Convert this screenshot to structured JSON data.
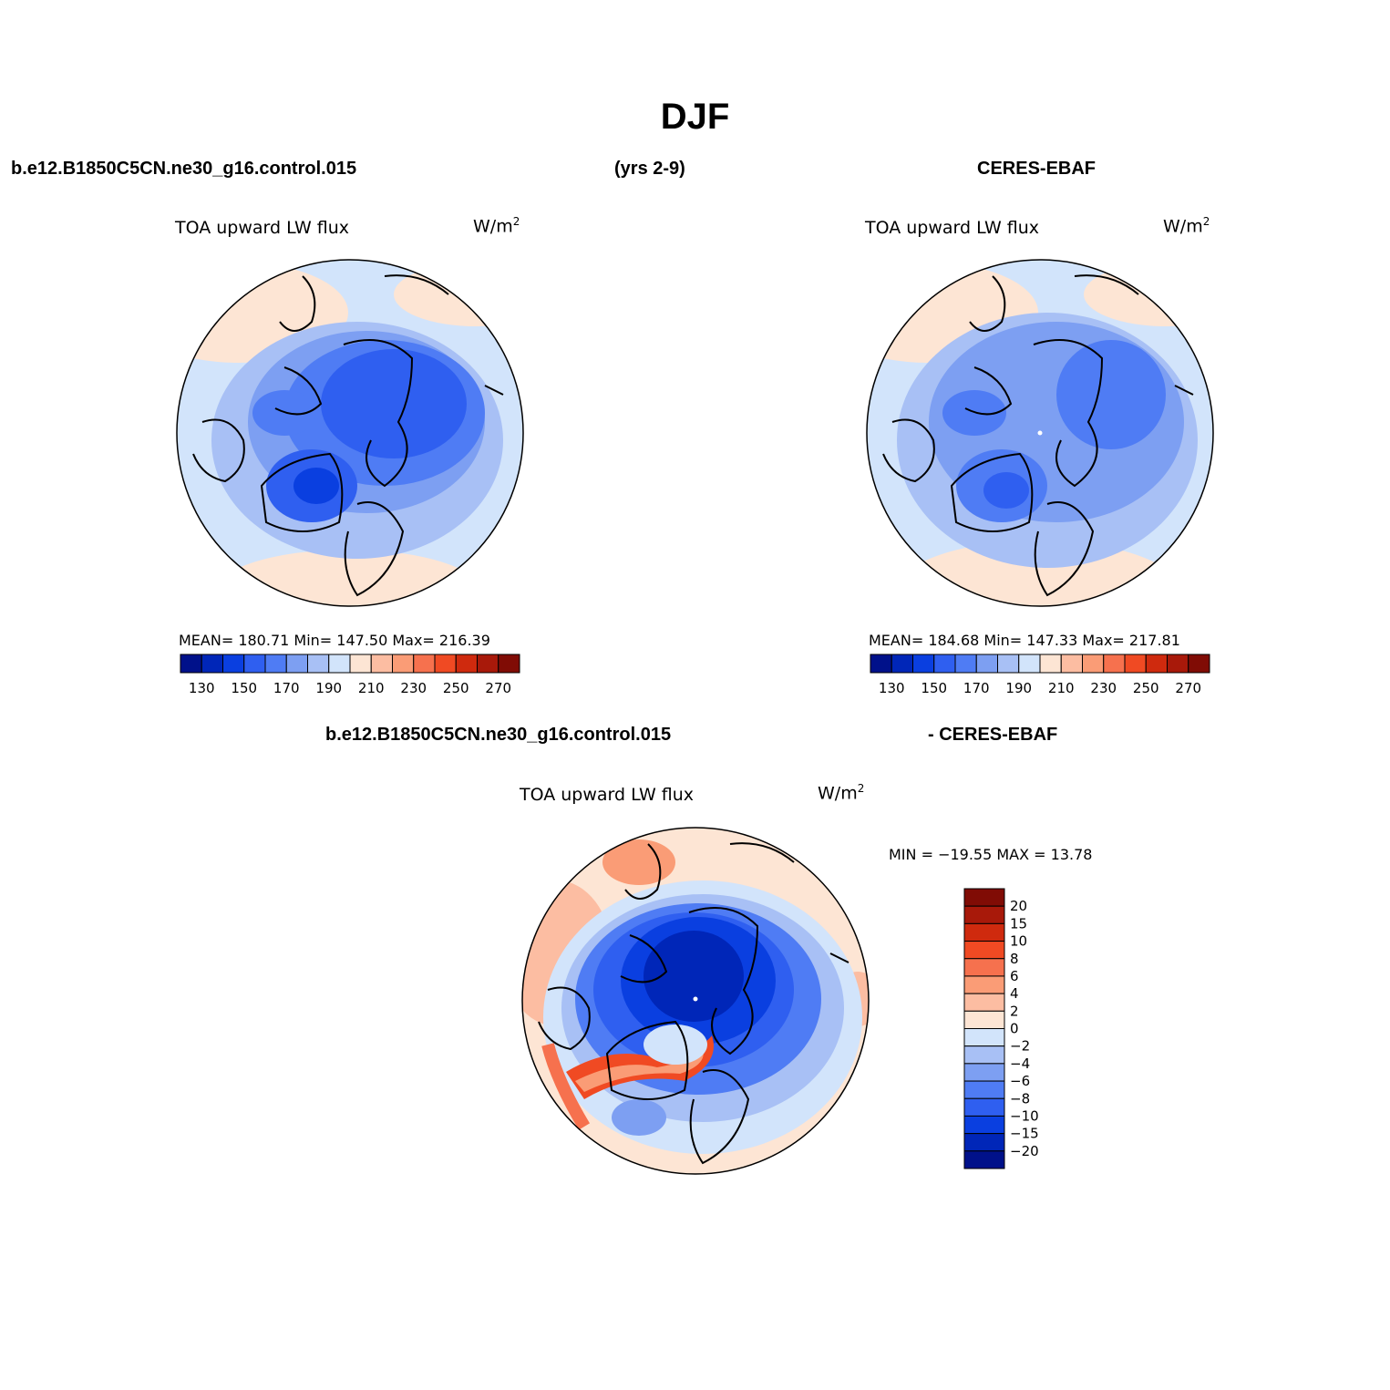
{
  "title": "DJF",
  "header": {
    "case_name": "b.e12.B1850C5CN.ne30_g16.control.015",
    "years": "(yrs 2-9)",
    "obs_name": "CERES-EBAF",
    "diff_case": "b.e12.B1850C5CN.ne30_g16.control.015",
    "diff_obs": "- CERES-EBAF"
  },
  "panels": {
    "model": {
      "title": "TOA upward LW flux",
      "units": "W/m",
      "units_sup": "2",
      "stats": "MEAN= 180.71   Min= 147.50   Max= 216.39"
    },
    "obs": {
      "title": "TOA upward LW flux",
      "units": "W/m",
      "units_sup": "2",
      "stats": "MEAN= 184.68   Min= 147.33   Max= 217.81"
    },
    "diff": {
      "title": "TOA upward LW flux",
      "units": "W/m",
      "units_sup": "2",
      "stats": "MIN = −19.55  MAX =   13.78"
    }
  },
  "colorbar_abs": {
    "labels": [
      "130",
      "150",
      "170",
      "190",
      "210",
      "230",
      "250",
      "270"
    ],
    "colors": [
      "#00118a",
      "#0026b8",
      "#0a3fe0",
      "#2f5ff0",
      "#4f7cf4",
      "#7d9ff2",
      "#a8c0f5",
      "#d2e4fb",
      "#fde5d4",
      "#fcbda2",
      "#fa9c76",
      "#f6714e",
      "#f04a23",
      "#cf2a0e",
      "#a8190a",
      "#800c05"
    ]
  },
  "colorbar_diff": {
    "labels": [
      "20",
      "15",
      "10",
      "8",
      "6",
      "4",
      "2",
      "0",
      "−2",
      "−4",
      "−6",
      "−8",
      "−10",
      "−15",
      "−20"
    ],
    "colors": [
      "#800c05",
      "#a8190a",
      "#cf2a0e",
      "#f04a23",
      "#f6714e",
      "#fa9c76",
      "#fcbda2",
      "#fde5d4",
      "#d2e4fb",
      "#a8c0f5",
      "#7d9ff2",
      "#4f7cf4",
      "#2f5ff0",
      "#0a3fe0",
      "#0026b8",
      "#00118a"
    ]
  }
}
